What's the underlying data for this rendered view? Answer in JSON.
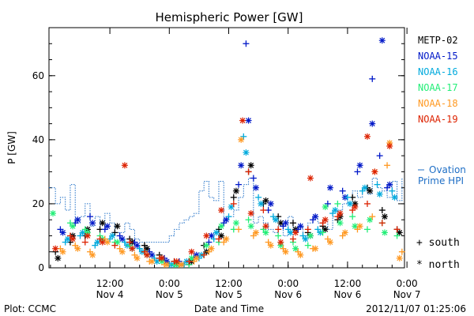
{
  "chart_data": {
    "type": "scatter",
    "title": "Hemispheric Power [GW]",
    "ylabel": "P [GW]",
    "xlabel": "Date and Time",
    "ylim": [
      0,
      75
    ],
    "yticks": [
      0,
      20,
      40,
      60
    ],
    "xlim_hours": [
      -24.3,
      47.5
    ],
    "xticks": [
      {
        "hour": -12,
        "line1": "12:00",
        "line2": "Nov 4"
      },
      {
        "hour": 0,
        "line1": "0:00",
        "line2": "Nov 5"
      },
      {
        "hour": 12,
        "line1": "12:00",
        "line2": "Nov 5"
      },
      {
        "hour": 24,
        "line1": "0:00",
        "line2": "Nov 6"
      },
      {
        "hour": 36,
        "line1": "12:00",
        "line2": "Nov 6"
      },
      {
        "hour": 48,
        "line1": "0:00",
        "line2": "Nov 7"
      }
    ],
    "marker_legend": [
      {
        "symbol": "+",
        "label": "south"
      },
      {
        "symbol": "*",
        "label": "north"
      }
    ],
    "ovation": {
      "name": "Ovation Prime HPI",
      "label_line1": "Ovation",
      "label_line2": "Prime HPI",
      "color": "#1f6fc6",
      "x": [
        -24.3,
        -23,
        -22,
        -21,
        -20,
        -19,
        -18,
        -17,
        -16,
        -15,
        -14,
        -13,
        -12,
        -11,
        -10,
        -9,
        -8,
        -7,
        -6,
        -5,
        -4,
        -3,
        -2,
        -1,
        0,
        1,
        2,
        3,
        4,
        5,
        6,
        7,
        8,
        9,
        10,
        11,
        12,
        13,
        14,
        15,
        16,
        17,
        18,
        19,
        20,
        21,
        22,
        23,
        24,
        25,
        26,
        27,
        28,
        29,
        30,
        31,
        32,
        33,
        34,
        35,
        36,
        37,
        38,
        39,
        40,
        41,
        42,
        43,
        44,
        45,
        46,
        47
      ],
      "values": [
        25,
        20,
        22,
        18,
        26,
        14,
        16,
        20,
        13,
        16,
        12,
        17,
        14,
        11,
        11,
        14,
        12,
        9,
        8,
        8,
        8,
        8,
        8,
        8,
        10,
        12,
        14,
        15,
        16,
        17,
        24,
        27,
        22,
        21,
        27,
        15,
        16,
        18,
        22,
        26,
        28,
        14,
        16,
        14,
        12,
        11,
        13,
        10,
        16,
        12,
        13,
        10,
        14,
        16,
        14,
        15,
        12,
        16,
        18,
        20,
        22,
        24,
        22,
        25,
        23,
        28,
        25,
        24,
        22,
        27,
        21,
        28
      ]
    },
    "series": [
      {
        "name": "METP-02",
        "color": "#000000",
        "south": {
          "x": [
            -23,
            -20,
            -17,
            -14,
            -11,
            -8,
            -5,
            -2,
            1,
            4,
            7,
            10,
            13,
            16,
            19,
            22,
            25,
            28,
            31,
            34,
            37,
            40,
            43,
            46
          ],
          "values": [
            5,
            8,
            10,
            12,
            11,
            9,
            7,
            4,
            2,
            1,
            7,
            12,
            22,
            30,
            20,
            16,
            14,
            11,
            13,
            15,
            22,
            25,
            18,
            12
          ]
        },
        "north": {
          "x": [
            -22.5,
            -19.5,
            -16.5,
            -13.5,
            -10.5,
            -7.5,
            -4.5,
            -1.5,
            1.5,
            4.5,
            7.5,
            10.5,
            13.5,
            16.5,
            19.5,
            22.5,
            25.5,
            28.5,
            31.5,
            34.5,
            37.5,
            40.5,
            43.5,
            46.5
          ],
          "values": [
            3,
            10,
            12,
            14,
            13,
            8,
            6,
            3,
            1,
            2,
            5,
            10,
            24,
            32,
            21,
            14,
            12,
            10,
            12,
            16,
            20,
            24,
            16,
            11
          ]
        }
      },
      {
        "name": "NOAA-15",
        "color": "#0018c8",
        "south": {
          "x": [
            -22,
            -19,
            -16,
            -13,
            -10,
            -7,
            -4,
            -1,
            2,
            5,
            8,
            11,
            14,
            15.5,
            17,
            20,
            23,
            26,
            29,
            32,
            35,
            38,
            41,
            42.5,
            44
          ],
          "values": [
            12,
            14,
            16,
            12,
            10,
            8,
            5,
            3,
            2,
            3,
            8,
            14,
            26,
            70,
            28,
            18,
            13,
            12,
            15,
            20,
            24,
            30,
            59,
            35,
            25
          ]
        },
        "north": {
          "x": [
            -21.5,
            -18.5,
            -15.5,
            -12.5,
            -9.5,
            -6.5,
            -3.5,
            -0.5,
            2.5,
            5.5,
            8.5,
            11.5,
            14.5,
            16,
            17.5,
            20.5,
            23.5,
            26.5,
            29.5,
            32.5,
            35.5,
            38.5,
            41,
            43,
            44.5
          ],
          "values": [
            11,
            15,
            14,
            13,
            9,
            7,
            4,
            2,
            1,
            4,
            10,
            15,
            32,
            46,
            25,
            20,
            14,
            13,
            16,
            25,
            22,
            32,
            45,
            71,
            26
          ]
        }
      },
      {
        "name": "NOAA-16",
        "color": "#00aadd",
        "south": {
          "x": [
            -21,
            -18,
            -15,
            -12,
            -9,
            -6,
            -3,
            0,
            3,
            6,
            9,
            12,
            15,
            18,
            21,
            24,
            27,
            30,
            33,
            36,
            39,
            42,
            45
          ],
          "values": [
            8,
            10,
            7,
            9,
            8,
            6,
            3,
            1,
            1,
            3,
            9,
            16,
            41,
            22,
            16,
            12,
            10,
            12,
            17,
            22,
            24,
            26,
            24
          ]
        },
        "north": {
          "x": [
            -20.5,
            -17.5,
            -14.5,
            -11.5,
            -8.5,
            -5.5,
            -2.5,
            0.5,
            3.5,
            6.5,
            9.5,
            12.5,
            15.5,
            18.5,
            21.5,
            24.5,
            27.5,
            30.5,
            33.5,
            36.5,
            39.5,
            42.5,
            45.5
          ],
          "values": [
            9,
            11,
            8,
            10,
            7,
            5,
            2,
            1,
            2,
            4,
            11,
            19,
            36,
            20,
            15,
            11,
            9,
            11,
            18,
            20,
            25,
            23,
            22
          ]
        }
      },
      {
        "name": "NOAA-17",
        "color": "#22ee77",
        "south": {
          "x": [
            -20,
            -17,
            -14,
            -11,
            -8,
            -5,
            -2,
            1,
            4,
            7,
            10,
            13,
            16,
            19,
            22,
            25,
            28,
            31,
            34,
            37,
            40,
            43,
            46
          ],
          "values": [
            14,
            12,
            10,
            8,
            7,
            5,
            3,
            1,
            1,
            4,
            8,
            12,
            15,
            12,
            10,
            8,
            7,
            11,
            20,
            16,
            12,
            14,
            10
          ]
        },
        "north": {
          "x": [
            -23.5,
            -19.5,
            -16.5,
            -13.5,
            -10.5,
            -7.5,
            -4.5,
            -1.5,
            1.5,
            4.5,
            7.5,
            10.5,
            13.5,
            16.5,
            19.5,
            22.5,
            25.5,
            28.5,
            31.5,
            34.5,
            37.5,
            40.5,
            43.5
          ],
          "values": [
            17,
            13,
            11,
            9,
            8,
            6,
            4,
            2,
            1,
            3,
            7,
            13,
            14,
            13,
            11,
            7,
            6,
            10,
            19,
            14,
            13,
            15,
            11
          ]
        }
      },
      {
        "name": "NOAA-18",
        "color": "#ff9922",
        "south": {
          "x": [
            -22,
            -19,
            -16,
            -13,
            -10,
            -7,
            -4,
            -1,
            2,
            5,
            8,
            11,
            14,
            17,
            20,
            23,
            26,
            29,
            32,
            35,
            38,
            41,
            44,
            47
          ],
          "values": [
            6,
            7,
            5,
            9,
            6,
            4,
            2,
            1,
            1,
            2,
            5,
            8,
            12,
            10,
            8,
            6,
            5,
            6,
            9,
            10,
            12,
            16,
            32,
            5
          ]
        },
        "north": {
          "x": [
            -21.5,
            -18.5,
            -15.5,
            -12.5,
            -9.5,
            -6.5,
            -3.5,
            -0.5,
            2.5,
            5.5,
            8.5,
            11.5,
            14.5,
            17.5,
            20.5,
            23.5,
            26.5,
            29.5,
            32.5,
            35.5,
            38.5,
            41.5,
            44.5,
            46.5
          ],
          "values": [
            5,
            6,
            4,
            8,
            5,
            3,
            2,
            1,
            1,
            3,
            6,
            9,
            40,
            11,
            7,
            5,
            4,
            6,
            8,
            11,
            13,
            30,
            39,
            3
          ]
        }
      },
      {
        "name": "NOAA-19",
        "color": "#dd2200",
        "south": {
          "x": [
            -20,
            -17,
            -14,
            -11,
            -8,
            -5,
            -2,
            1,
            4,
            7,
            10,
            13,
            16,
            19,
            22,
            25,
            28,
            31,
            34,
            37,
            40,
            43,
            46
          ],
          "values": [
            10,
            8,
            9,
            7,
            8,
            5,
            3,
            2,
            2,
            4,
            9,
            20,
            30,
            18,
            12,
            9,
            12,
            14,
            16,
            18,
            20,
            14,
            12
          ]
        },
        "north": {
          "x": [
            -23,
            -19.5,
            -16.5,
            -13.5,
            -9,
            -7.5,
            -4.5,
            -1.5,
            1.5,
            4.5,
            7.5,
            10.5,
            14.8,
            16.5,
            19.5,
            22.5,
            25.5,
            28.5,
            31.5,
            34.5,
            37.5,
            40,
            41.5,
            44.5
          ],
          "values": [
            6,
            9,
            10,
            8,
            32,
            6,
            4,
            3,
            2,
            5,
            10,
            18,
            46,
            17,
            13,
            8,
            11,
            28,
            15,
            17,
            19,
            41,
            30,
            38
          ]
        }
      }
    ]
  },
  "footer": {
    "plot_label": "Plot: CCMC",
    "timestamp": "2012/11/07 01:25:06"
  }
}
